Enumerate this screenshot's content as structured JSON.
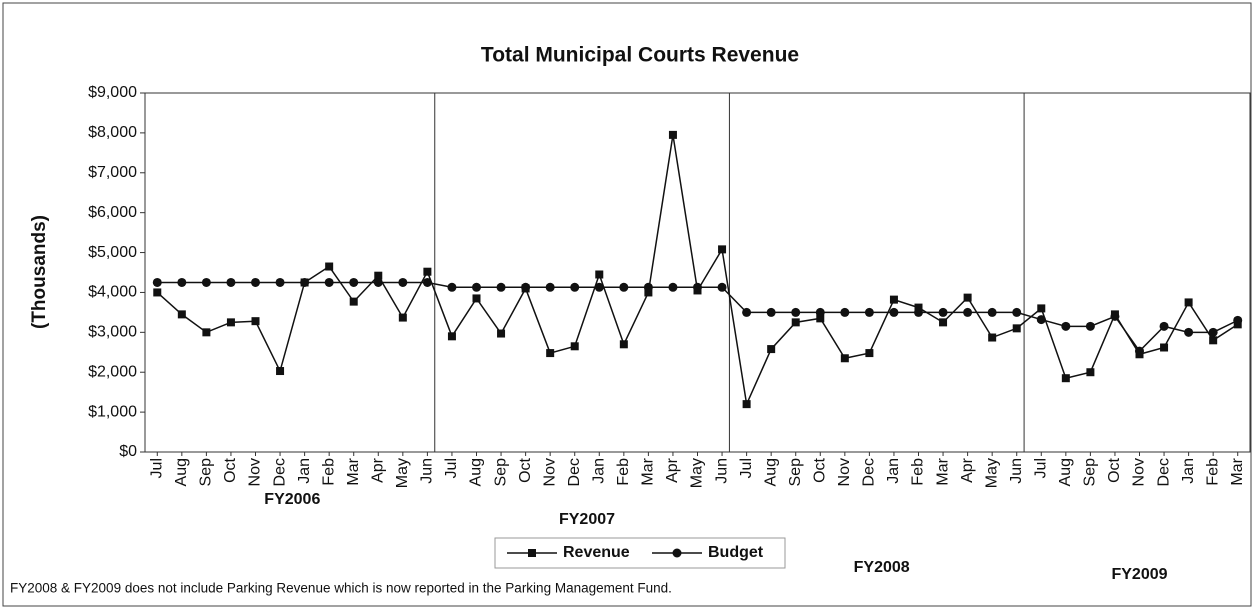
{
  "chart_data": {
    "type": "line",
    "title": "Total Municipal Courts Revenue",
    "y_label": "(Thousands)",
    "groups": [
      {
        "label": "FY2006",
        "categories": [
          "Jul",
          "Aug",
          "Sep",
          "Oct",
          "Nov",
          "Dec",
          "Jan",
          "Feb",
          "Mar",
          "Apr",
          "May",
          "Jun"
        ]
      },
      {
        "label": "FY2007",
        "categories": [
          "Jul",
          "Aug",
          "Sep",
          "Oct",
          "Nov",
          "Dec",
          "Jan",
          "Feb",
          "Mar",
          "Apr",
          "May",
          "Jun"
        ]
      },
      {
        "label": "FY2008",
        "categories": [
          "Jul",
          "Aug",
          "Sep",
          "Oct",
          "Nov",
          "Dec",
          "Jan",
          "Feb",
          "Mar",
          "Apr",
          "May",
          "Jun"
        ]
      },
      {
        "label": "FY2009",
        "categories": [
          "Jul",
          "Aug",
          "Sep",
          "Oct",
          "Nov",
          "Dec",
          "Jan",
          "Feb",
          "Mar"
        ]
      }
    ],
    "series": [
      {
        "name": "Revenue",
        "color": "#111111",
        "marker": "square",
        "values": [
          4000,
          3450,
          3000,
          3250,
          3280,
          2030,
          4250,
          4650,
          3770,
          4420,
          3370,
          4520,
          2900,
          3850,
          2970,
          4100,
          2480,
          2650,
          4450,
          2700,
          4000,
          7950,
          4050,
          5080,
          1200,
          2580,
          3250,
          3350,
          2350,
          2480,
          3820,
          3620,
          3250,
          3870,
          2870,
          3100,
          3600,
          1850,
          2000,
          3450,
          2450,
          2620,
          3750,
          2800,
          3200
        ]
      },
      {
        "name": "Budget",
        "color": "#111111",
        "marker": "circle",
        "values": [
          4250,
          4250,
          4250,
          4250,
          4250,
          4250,
          4250,
          4250,
          4250,
          4250,
          4250,
          4250,
          4130,
          4130,
          4130,
          4130,
          4130,
          4130,
          4130,
          4130,
          4130,
          4130,
          4130,
          4130,
          3500,
          3500,
          3500,
          3500,
          3500,
          3500,
          3500,
          3500,
          3500,
          3500,
          3500,
          3500,
          3320,
          3150,
          3150,
          3400,
          2530,
          3150,
          3000,
          3000,
          3300
        ]
      }
    ],
    "ylim": [
      0,
      9000
    ],
    "yticks": [
      {
        "value": 0,
        "label": "$0"
      },
      {
        "value": 1000,
        "label": "$1,000"
      },
      {
        "value": 2000,
        "label": "$2,000"
      },
      {
        "value": 3000,
        "label": "$3,000"
      },
      {
        "value": 4000,
        "label": "$4,000"
      },
      {
        "value": 5000,
        "label": "$5,000"
      },
      {
        "value": 6000,
        "label": "$6,000"
      },
      {
        "value": 7000,
        "label": "$7,000"
      },
      {
        "value": 8000,
        "label": "$8,000"
      },
      {
        "value": 9000,
        "label": "$9,000"
      }
    ],
    "legend": "bottom",
    "note": "FY2008 & FY2009 does not include Parking Revenue which is now reported in the Parking Management Fund."
  }
}
